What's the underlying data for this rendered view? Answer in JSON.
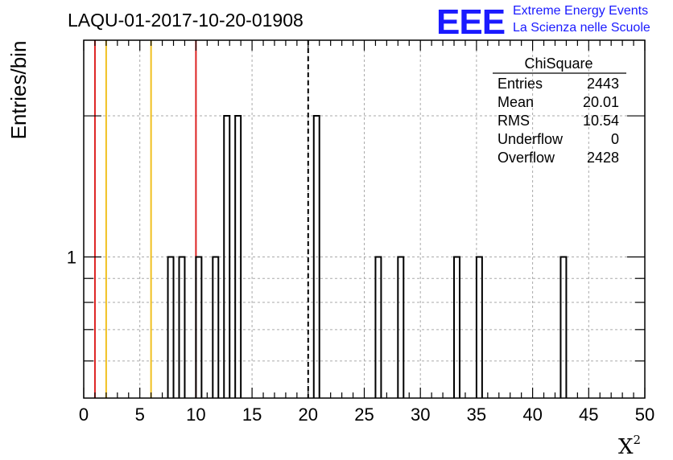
{
  "chart_data": {
    "type": "histogram",
    "title": "LAQU-01-2017-10-20-01908",
    "xlabel": "X",
    "xlabel_sup": "2",
    "ylabel": "Entries/bin",
    "xlim": [
      0,
      50
    ],
    "ylim_log": [
      0.5,
      2.9
    ],
    "log_y": true,
    "grid": true,
    "x_ticks": [
      "0",
      "5",
      "10",
      "15",
      "20",
      "25",
      "30",
      "35",
      "40",
      "45",
      "50"
    ],
    "y_ticks": [
      {
        "value": 1,
        "label": "1"
      }
    ],
    "bin_width": 0.5,
    "bins": [
      {
        "x": 7.5,
        "y": 1
      },
      {
        "x": 8.5,
        "y": 1
      },
      {
        "x": 10.0,
        "y": 1
      },
      {
        "x": 11.5,
        "y": 1
      },
      {
        "x": 12.5,
        "y": 2
      },
      {
        "x": 13.5,
        "y": 2
      },
      {
        "x": 20.5,
        "y": 2
      },
      {
        "x": 26.0,
        "y": 1
      },
      {
        "x": 28.0,
        "y": 1
      },
      {
        "x": 33.0,
        "y": 1
      },
      {
        "x": 35.0,
        "y": 1
      },
      {
        "x": 42.5,
        "y": 1
      }
    ],
    "vertical_lines": [
      {
        "x": 1,
        "color": "#dd2222",
        "style": "solid"
      },
      {
        "x": 2,
        "color": "#f0c020",
        "style": "solid"
      },
      {
        "x": 6,
        "color": "#f0c020",
        "style": "solid"
      },
      {
        "x": 10,
        "color": "#dd2222",
        "style": "solid"
      },
      {
        "x": 20,
        "color": "#000000",
        "style": "dashed"
      }
    ],
    "stats_box": {
      "name": "ChiSquare",
      "rows": [
        {
          "label": "Entries",
          "value": "2443"
        },
        {
          "label": "Mean",
          "value": "20.01"
        },
        {
          "label": "RMS",
          "value": "10.54"
        },
        {
          "label": "Underflow",
          "value": "0"
        },
        {
          "label": "Overflow",
          "value": "2428"
        }
      ]
    }
  },
  "logo": {
    "text": "EEE",
    "line1": "Extreme Energy Events",
    "line2": "La Scienza nelle Scuole",
    "color": "#1a1aff"
  }
}
